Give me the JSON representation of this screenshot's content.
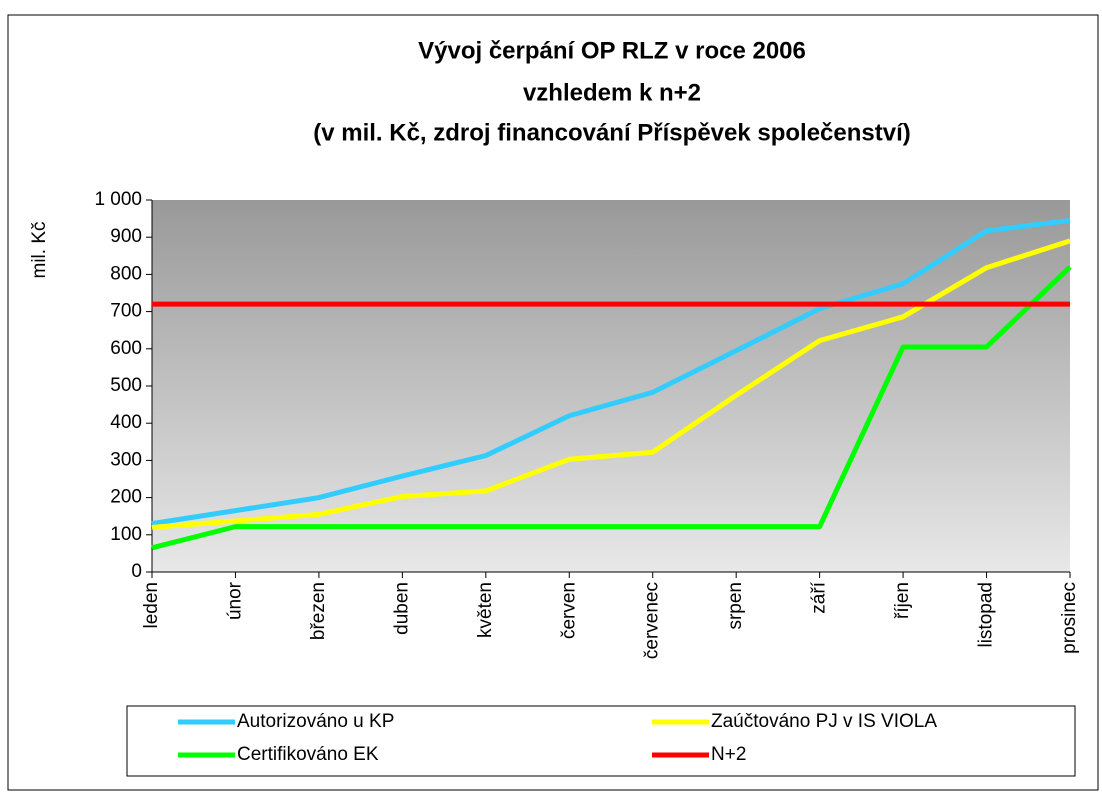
{
  "chart_data": {
    "type": "line",
    "title": [
      "Vývoj čerpání OP RLZ v roce 2006",
      "vzhledem k n+2",
      "(v mil. Kč, zdroj financování Příspěvek společenství)"
    ],
    "y_label": "mil. Kč",
    "categories": [
      "leden",
      "únor",
      "březen",
      "duben",
      "květen",
      "červen",
      "červenec",
      "srpen",
      "září",
      "říjen",
      "listopad",
      "prosinec"
    ],
    "series": [
      {
        "name": "Autorizováno u KP",
        "color": "#33ccff",
        "values": [
          130,
          165,
          200,
          258,
          313,
          420,
          483,
          595,
          708,
          775,
          917,
          945
        ]
      },
      {
        "name": "Zaúčtováno PJ v IS VIOLA",
        "color": "#ffff00",
        "values": [
          120,
          137,
          155,
          203,
          218,
          303,
          322,
          475,
          622,
          686,
          818,
          890
        ]
      },
      {
        "name": "Certifikováno EK",
        "color": "#00ff00",
        "values": [
          65,
          122,
          122,
          122,
          122,
          122,
          122,
          122,
          122,
          605,
          605,
          820
        ]
      },
      {
        "name": "N+2",
        "color": "#ff0000",
        "values": [
          720,
          720,
          720,
          720,
          720,
          720,
          720,
          720,
          720,
          720,
          720,
          720
        ]
      }
    ],
    "ylim": [
      0,
      1000
    ],
    "yticks": [
      0,
      100,
      200,
      300,
      400,
      500,
      600,
      700,
      800,
      900,
      {
        "value": 1000,
        "label": "1 000"
      }
    ]
  }
}
